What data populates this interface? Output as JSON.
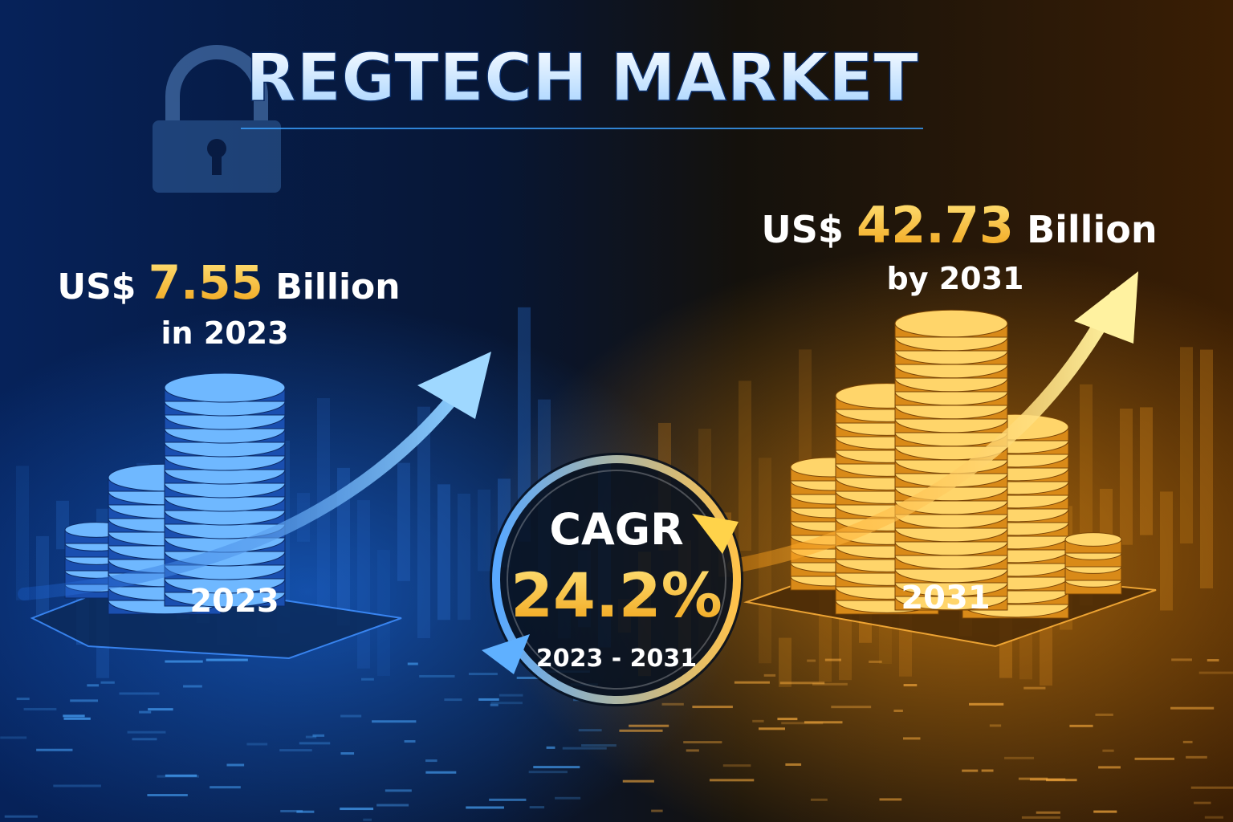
{
  "title": "REGTECH MARKET",
  "start": {
    "currency": "US$",
    "value": "7.55",
    "unit": "Billion",
    "period": "in 2023",
    "stack_label": "2023"
  },
  "end": {
    "currency": "US$",
    "value": "42.73",
    "unit": "Billion",
    "period": "by 2031",
    "stack_label": "2031"
  },
  "cagr": {
    "label": "CAGR",
    "value": "24.2%",
    "period": "2023 - 2031"
  }
}
